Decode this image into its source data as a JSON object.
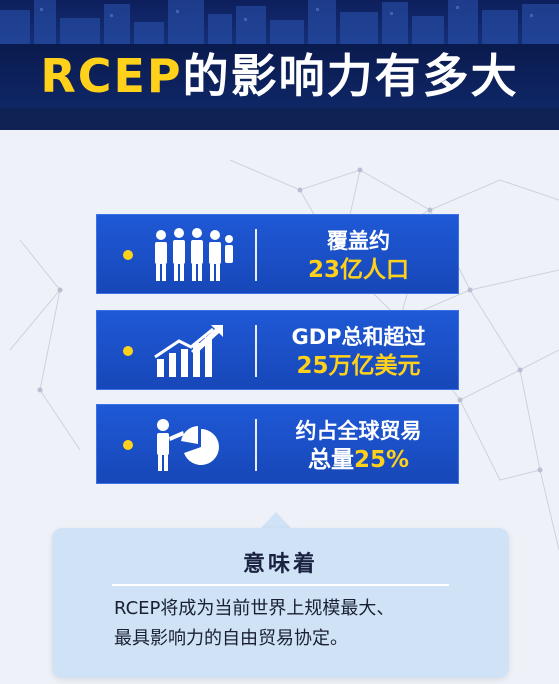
{
  "header": {
    "title_prefix": "RCEP",
    "title_rest": "的影响力有多大"
  },
  "cards": [
    {
      "icon": "people-icon",
      "line1": "覆盖约",
      "line2": "23亿人口"
    },
    {
      "icon": "growth-chart-icon",
      "line1": "GDP总和超过",
      "line2": "25万亿美元"
    },
    {
      "icon": "presenter-pie-chart-icon",
      "line1": "约占全球贸易",
      "line2_prefix": "总量",
      "line2_highlight": "25%"
    }
  ],
  "summary": {
    "title": "意味着",
    "body_line1": "RCEP将成为当前世界上规模最大、",
    "body_line2": "最具影响力的自由贸易协定。"
  },
  "colors": {
    "accent_yellow": "#ffd11a",
    "card_blue": "#1a4fc4",
    "header_navy": "#0f2254",
    "box_blue": "#cfe2f6"
  }
}
